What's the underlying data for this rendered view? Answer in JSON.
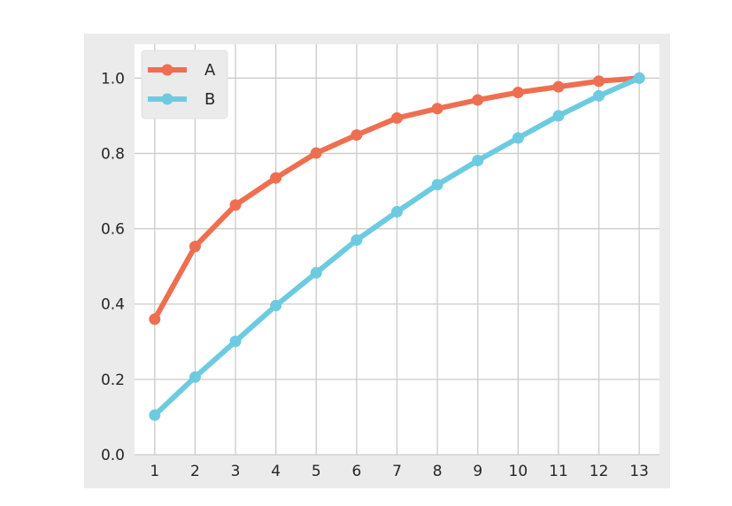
{
  "chart_data": {
    "type": "line",
    "title": "",
    "xlabel": "",
    "ylabel": "",
    "x": [
      1,
      2,
      3,
      4,
      5,
      6,
      7,
      8,
      9,
      10,
      11,
      12,
      13
    ],
    "xlim": [
      0.5,
      13.5
    ],
    "ylim": [
      0,
      1.09
    ],
    "yticks": [
      0.0,
      0.2,
      0.4,
      0.6,
      0.8,
      1.0
    ],
    "ytick_labels": [
      "0.0",
      "0.2",
      "0.4",
      "0.6",
      "0.8",
      "1.0"
    ],
    "xtick_labels": [
      "1",
      "2",
      "3",
      "4",
      "5",
      "6",
      "7",
      "8",
      "9",
      "10",
      "11",
      "12",
      "13"
    ],
    "grid": true,
    "legend_position": "top-left",
    "series": [
      {
        "name": "A",
        "color": "#ee6f50",
        "marker": "circle",
        "values": [
          0.36,
          0.553,
          0.663,
          0.735,
          0.801,
          0.849,
          0.894,
          0.919,
          0.942,
          0.962,
          0.977,
          0.992,
          1.0
        ]
      },
      {
        "name": "B",
        "color": "#6dcbe1",
        "marker": "circle",
        "values": [
          0.105,
          0.206,
          0.301,
          0.396,
          0.483,
          0.57,
          0.645,
          0.717,
          0.781,
          0.841,
          0.9,
          0.953,
          1.0
        ]
      }
    ],
    "colors": {
      "figure_background": "#ebebeb",
      "axes_background": "#ffffff",
      "grid": "#cbcbcb",
      "tick_text": "#262626",
      "legend_background": "#ebebeb"
    }
  }
}
